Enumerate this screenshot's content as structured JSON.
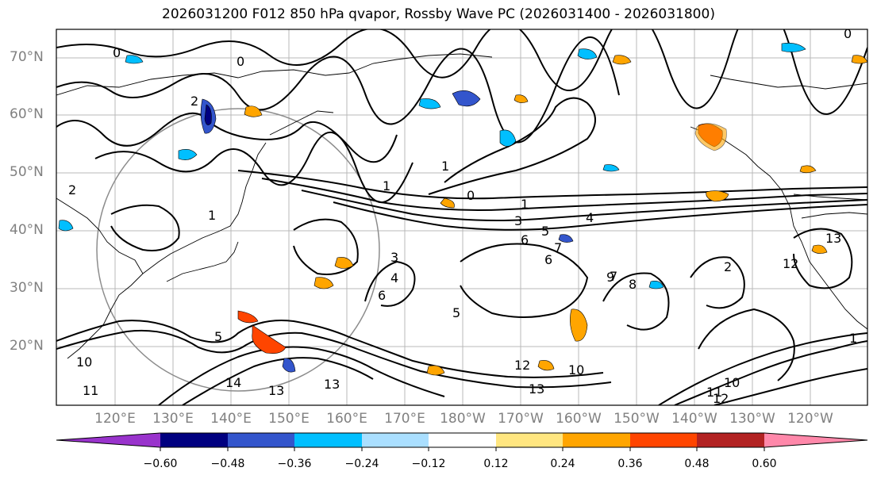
{
  "title": "2026031200 F012 850 hPa qvapor, Rossby Wave PC (2026031400 - 2026031800)",
  "latitude_labels": [
    "70°N",
    "60°N",
    "50°N",
    "40°N",
    "30°N",
    "20°N"
  ],
  "longitude_labels": [
    "120°E",
    "130°E",
    "140°E",
    "150°E",
    "160°E",
    "170°E",
    "180°W",
    "170°W",
    "160°W",
    "150°W",
    "140°W",
    "130°W",
    "120°W"
  ],
  "contour_labels": [
    "0",
    "0",
    "0",
    "2",
    "1",
    "1",
    "1",
    "0",
    "1",
    "3",
    "4",
    "5",
    "6",
    "7",
    "6",
    "2",
    "3",
    "4",
    "5",
    "6",
    "7",
    "8",
    "9",
    "10",
    "11",
    "12",
    "13",
    "14",
    "13",
    "13",
    "12",
    "11",
    "10",
    "10",
    "12",
    "13",
    "2",
    "1",
    "5"
  ],
  "colorbar": {
    "colors": [
      "#9933cc",
      "#000080",
      "#3355cc",
      "#00bfff",
      "#aadfff",
      "#ffffff",
      "#ffe680",
      "#ffa500",
      "#ff4500",
      "#b22222",
      "#ff88aa"
    ],
    "tick_labels": [
      "−0.60",
      "−0.48",
      "−0.36",
      "−0.24",
      "−0.12",
      "0.12",
      "0.24",
      "0.36",
      "0.48",
      "0.60"
    ]
  }
}
